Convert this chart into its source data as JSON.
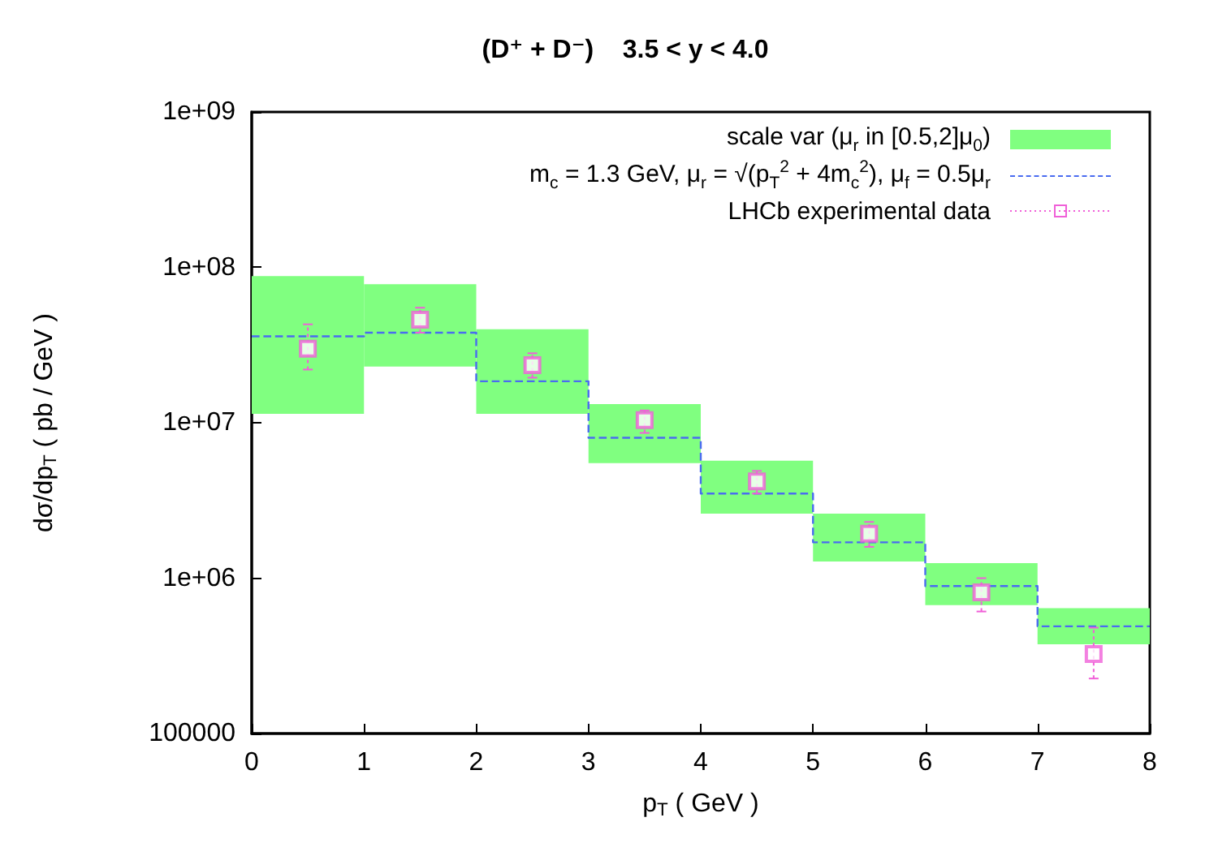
{
  "chart_data": {
    "type": "bar",
    "title": "(D⁺ + D⁻)    3.5 < y < 4.0",
    "xlabel": "p$_{T}$ ( GeV )",
    "ylabel": "dσ/dp$_{T}$ ( pb / GeV )",
    "log": "y",
    "xlim": [
      0,
      8
    ],
    "xticks": [
      0,
      1,
      2,
      3,
      4,
      5,
      6,
      7,
      8
    ],
    "ylim": [
      100000,
      1000000000
    ],
    "yticks": [
      100000,
      {
        "value": 1000000,
        "label": "1e+06"
      },
      {
        "value": 10000000,
        "label": "1e+07"
      },
      {
        "value": 100000000,
        "label": "1e+08"
      },
      {
        "value": 1000000000,
        "label": "1e+09"
      }
    ],
    "grid": false,
    "legend": "top right",
    "series": [
      {
        "name": "scale var (μ$_{r}$ in [0.5,2]μ$_{0}$)",
        "color": "#80ff80",
        "x": [
          0.5,
          1.5,
          2.5,
          3.5,
          4.5,
          5.5,
          6.5,
          7.5
        ],
        "base": [
          11400000,
          23000000,
          11400000,
          5500000,
          2600000,
          1280000,
          670000,
          375000
        ],
        "values": [
          76600000,
          55000000,
          28600000,
          7700000,
          3100000,
          1320000,
          580000,
          265000
        ]
      },
      {
        "type": "step",
        "name": "m$_{c}$ = 1.3 GeV, μ$_{r}$ = √(p$_{T}$$^{2}$ + 4m$_{c}$$^{2}$), μ$_{f}$ = 0.5μ$_{r}$",
        "color": "#4a6cf0",
        "line_style": "dashed",
        "marker": "none",
        "x": [
          0,
          1,
          2,
          3,
          4,
          5,
          6,
          7,
          8
        ],
        "values": [
          36000000,
          38000000,
          18500000,
          8000000,
          3500000,
          1700000,
          890000,
          490000,
          490000
        ]
      },
      {
        "type": "scatter",
        "name": "LHCb experimental data",
        "color": "#f060d8",
        "marker": "square",
        "x": [
          0.5,
          1.5,
          2.5,
          3.5,
          4.5,
          5.5,
          6.5,
          7.5
        ],
        "values": [
          30000000,
          46000000,
          23500000,
          10400000,
          4200000,
          1930000,
          810000,
          325000
        ],
        "errors": [
          [
            22000000,
            43000000
          ],
          [
            38000000,
            55000000
          ],
          [
            19500000,
            28000000
          ],
          [
            8600000,
            12000000
          ],
          [
            3500000,
            4900000
          ],
          [
            1590000,
            2300000
          ],
          [
            610000,
            1000000
          ],
          [
            226000,
            480000
          ]
        ]
      }
    ]
  }
}
